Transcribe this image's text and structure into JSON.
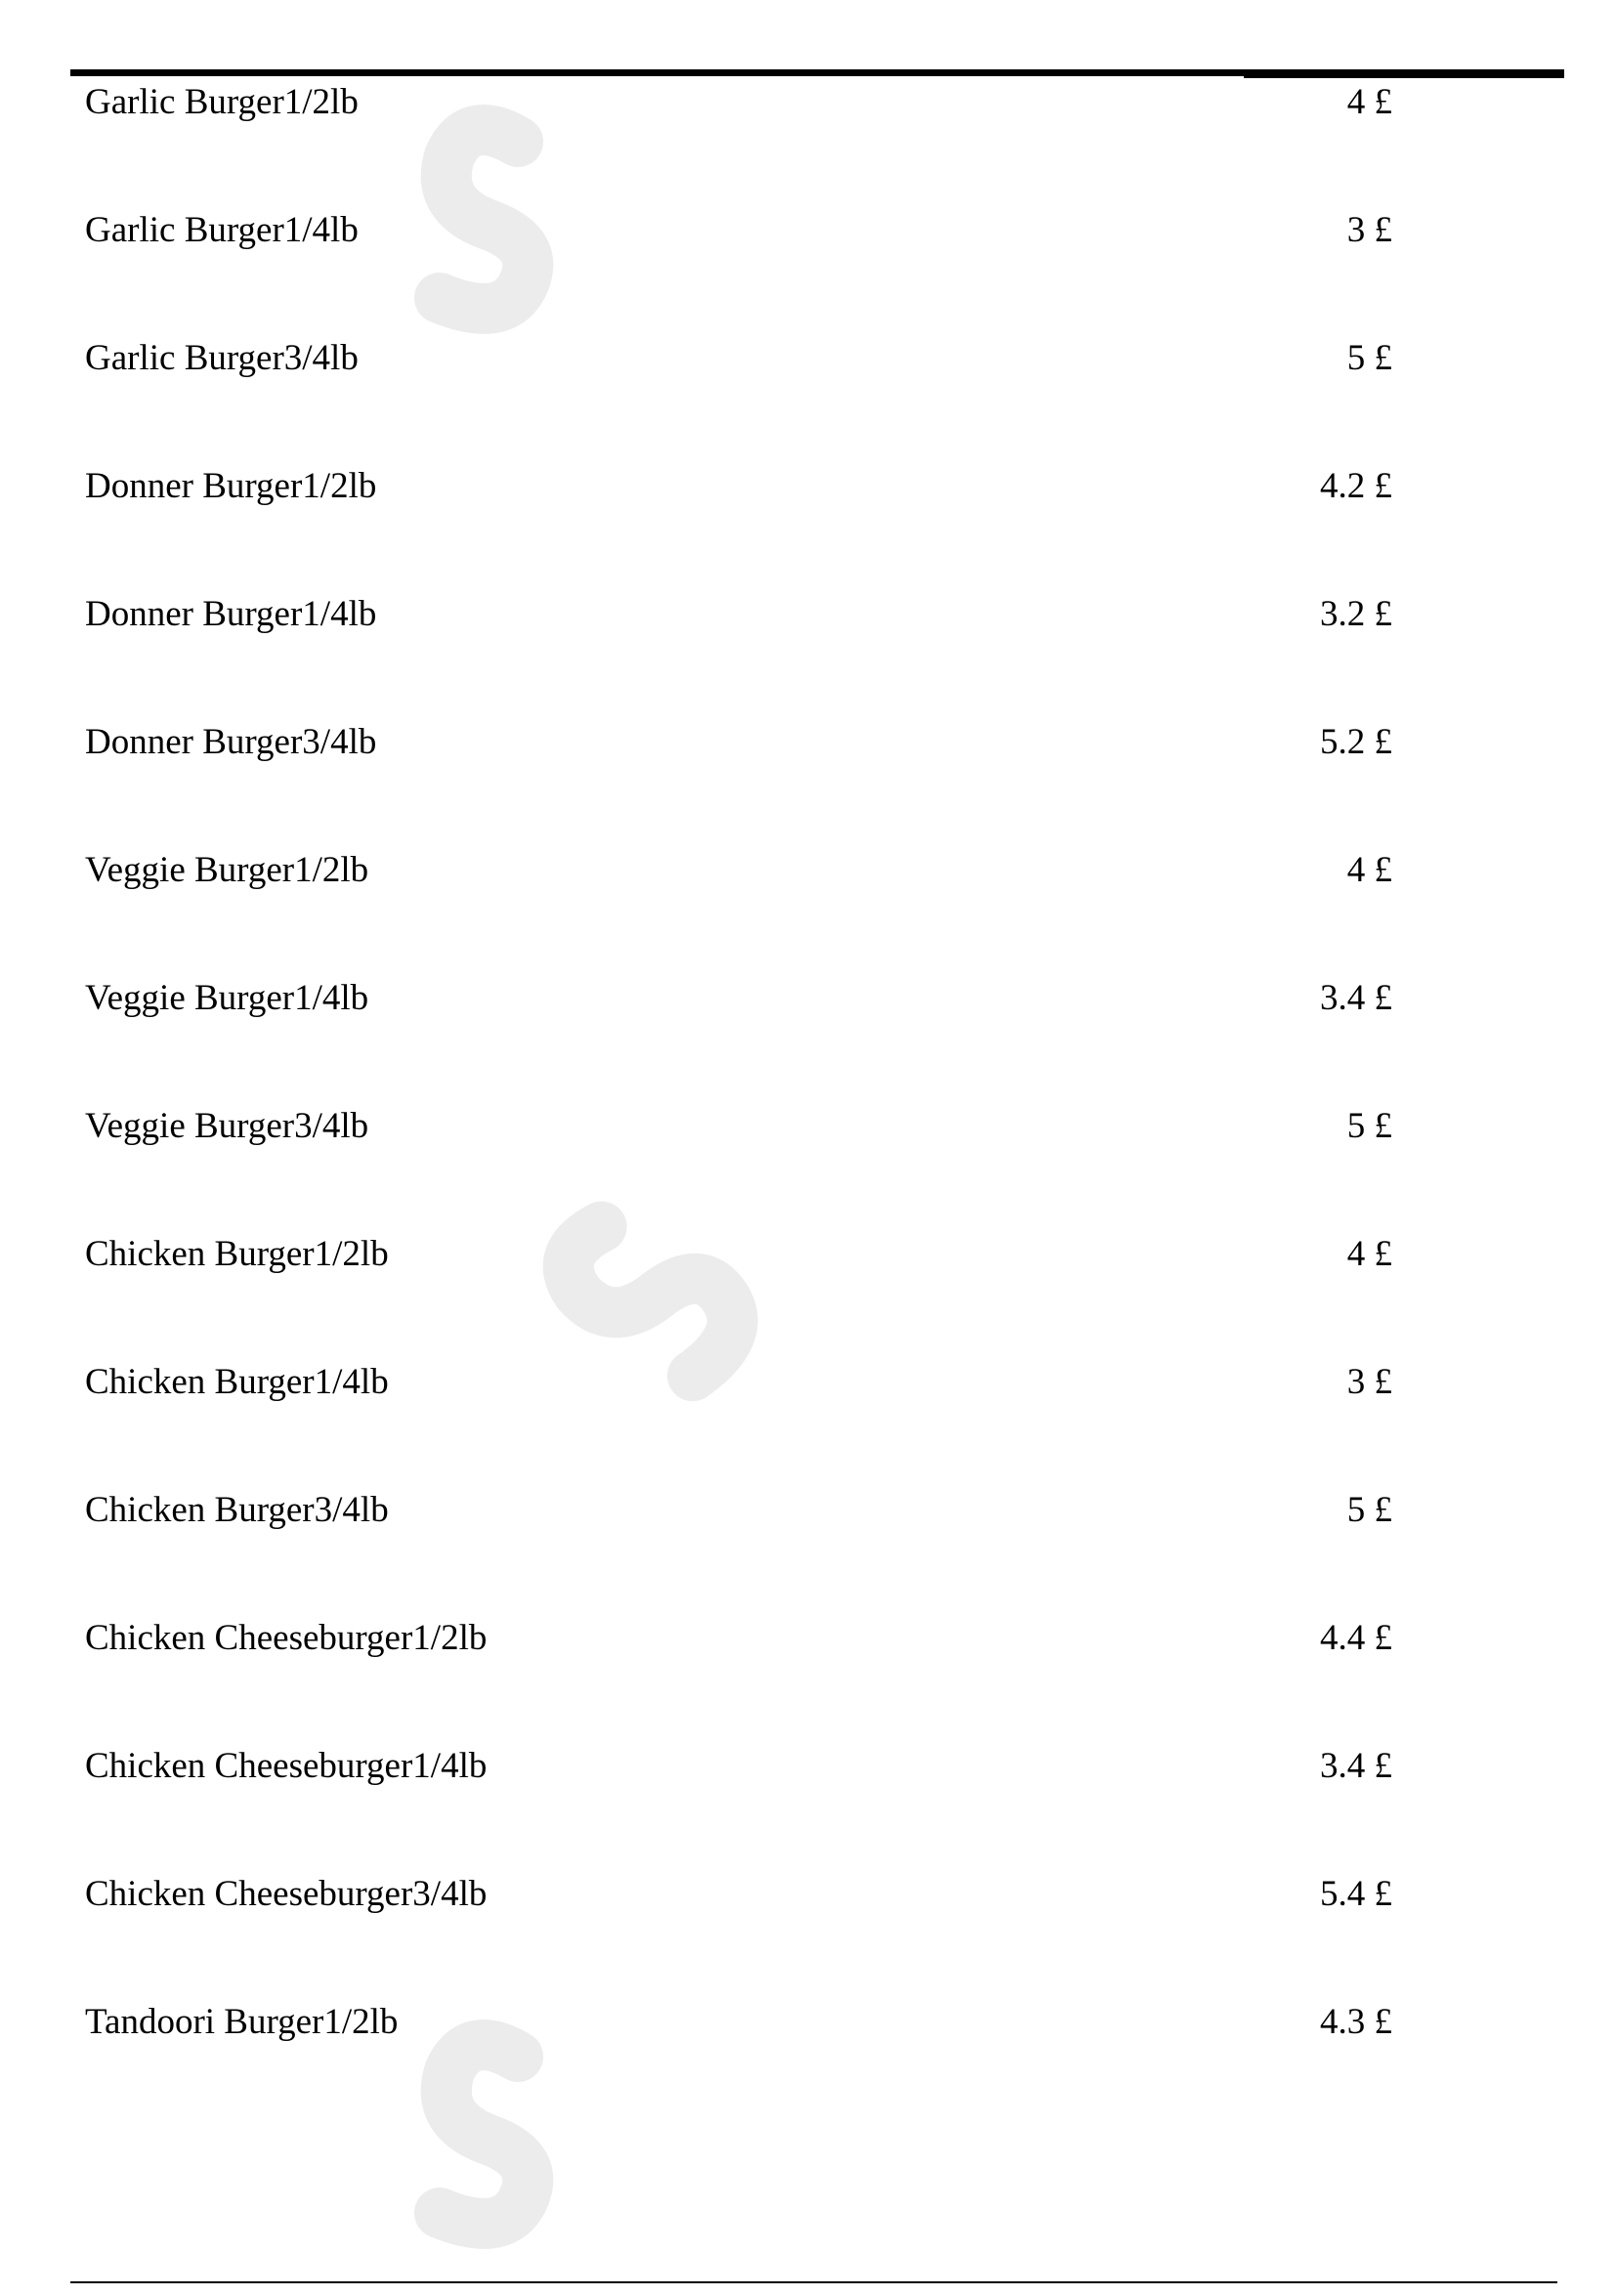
{
  "watermark": {
    "text_gray_1": "sl",
    "text_orange": "uu",
    "text_gray_2": "rpy",
    "gray": "#ececec",
    "orange": "#fdf0e2"
  },
  "menu_items": [
    {
      "name": "Garlic Burger1/2lb",
      "price": "4 £"
    },
    {
      "name": "Garlic Burger1/4lb",
      "price": "3 £"
    },
    {
      "name": "Garlic Burger3/4lb",
      "price": "5 £"
    },
    {
      "name": "Donner Burger1/2lb",
      "price": "4.2 £"
    },
    {
      "name": "Donner Burger1/4lb",
      "price": "3.2 £"
    },
    {
      "name": "Donner Burger3/4lb",
      "price": "5.2 £"
    },
    {
      "name": "Veggie Burger1/2lb",
      "price": "4 £"
    },
    {
      "name": "Veggie Burger1/4lb",
      "price": "3.4 £"
    },
    {
      "name": "Veggie Burger3/4lb",
      "price": "5 £"
    },
    {
      "name": "Chicken Burger1/2lb",
      "price": "4 £"
    },
    {
      "name": "Chicken Burger1/4lb",
      "price": "3 £"
    },
    {
      "name": "Chicken Burger3/4lb",
      "price": "5 £"
    },
    {
      "name": "Chicken Cheeseburger1/2lb",
      "price": "4.4 £"
    },
    {
      "name": "Chicken Cheeseburger1/4lb",
      "price": "3.4 £"
    },
    {
      "name": "Chicken Cheeseburger3/4lb",
      "price": "5.4 £"
    },
    {
      "name": "Tandoori Burger1/2lb",
      "price": "4.3 £"
    }
  ]
}
